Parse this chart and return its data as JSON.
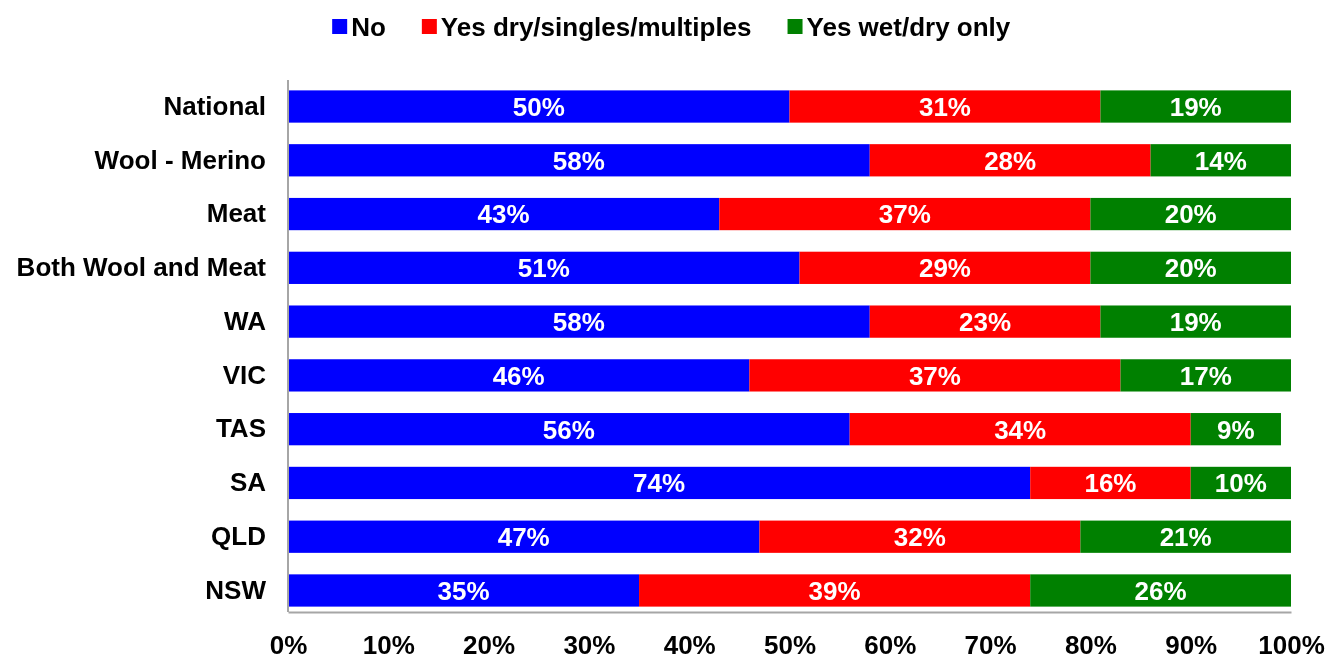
{
  "chart_data": {
    "type": "bar",
    "orientation": "horizontal",
    "stacked": true,
    "categories": [
      "National",
      "Wool - Merino",
      "Meat",
      "Both Wool and Meat",
      "WA",
      "VIC",
      "TAS",
      "SA",
      "QLD",
      "NSW"
    ],
    "series": [
      {
        "name": "No",
        "color": "#0000ff",
        "values": [
          50,
          58,
          43,
          51,
          58,
          46,
          56,
          74,
          47,
          35
        ],
        "value_labels": [
          "50%",
          "58%",
          "43%",
          "51%",
          "58%",
          "46%",
          "56%",
          "74%",
          "47%",
          "35%"
        ]
      },
      {
        "name": "Yes dry/singles/multiples",
        "color": "#ff0000",
        "values": [
          31,
          28,
          37,
          29,
          23,
          37,
          34,
          16,
          32,
          39
        ],
        "value_labels": [
          "31%",
          "28%",
          "37%",
          "29%",
          "23%",
          "37%",
          "34%",
          "16%",
          "32%",
          "39%"
        ]
      },
      {
        "name": "Yes wet/dry only",
        "color": "#008000",
        "values": [
          19,
          14,
          20,
          20,
          19,
          17,
          9,
          10,
          21,
          26
        ],
        "value_labels": [
          "19%",
          "14%",
          "20%",
          "20%",
          "19%",
          "17%",
          "9%",
          "10%",
          "21%",
          "26%"
        ]
      }
    ],
    "xlim": [
      0,
      100
    ],
    "xticks": [
      {
        "value": 0,
        "label": "0%"
      },
      {
        "value": 10,
        "label": "10%"
      },
      {
        "value": 20,
        "label": "20%"
      },
      {
        "value": 30,
        "label": "30%"
      },
      {
        "value": 40,
        "label": "40%"
      },
      {
        "value": 50,
        "label": "50%"
      },
      {
        "value": 60,
        "label": "60%"
      },
      {
        "value": 70,
        "label": "70%"
      },
      {
        "value": 80,
        "label": "80%"
      },
      {
        "value": 90,
        "label": "90%"
      },
      {
        "value": 100,
        "label": "100%"
      }
    ],
    "grid": false,
    "legend": "top"
  }
}
